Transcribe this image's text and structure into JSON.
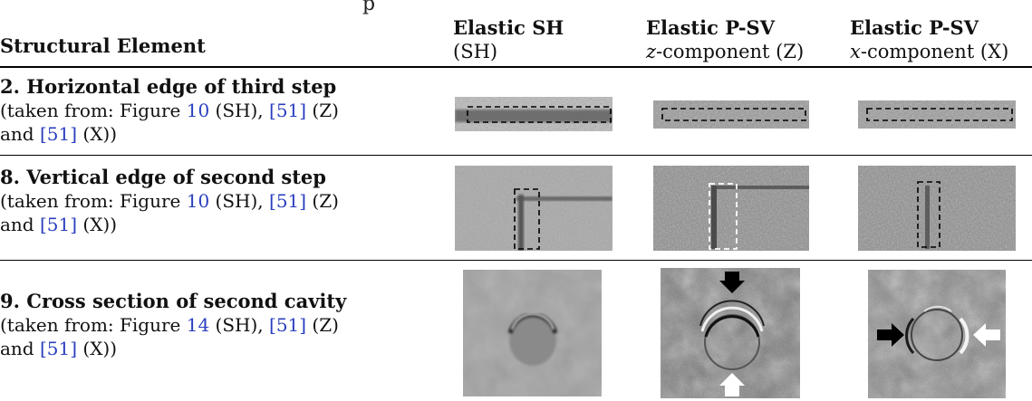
{
  "caption_fragment": "... [cut-off caption line]",
  "columns": [
    {
      "title": "Structural Element",
      "sub": ""
    },
    {
      "title": "Elastic SH",
      "sub": "(SH)"
    },
    {
      "title": "Elastic P-SV",
      "sub_italic": "z",
      "sub_rest": "-component (Z)"
    },
    {
      "title": "Elastic P-SV",
      "sub_italic": "x",
      "sub_rest": "-component (X)"
    }
  ],
  "rows": [
    {
      "title": "2. Horizontal edge of third step",
      "src_prefix": "(taken from: Figure ",
      "fig": "10",
      "sh_tag": " (SH), ",
      "ref1": "[51]",
      "z_tag": " (Z)",
      "src_and": "and ",
      "ref2": "[51]",
      "x_tag": " (X))"
    },
    {
      "title": "8. Vertical edge of second step",
      "src_prefix": "(taken from: Figure ",
      "fig": "10",
      "sh_tag": " (SH), ",
      "ref1": "[51]",
      "z_tag": " (Z)",
      "src_and": "and ",
      "ref2": "[51]",
      "x_tag": " (X))"
    },
    {
      "title": "9. Cross section of second cavity",
      "src_prefix": "(taken from: Figure ",
      "fig": "14",
      "sh_tag": " (SH), ",
      "ref1": "[51]",
      "z_tag": " (Z)",
      "src_and": "and ",
      "ref2": "[51]",
      "x_tag": " (X))"
    }
  ],
  "colors": {
    "reference_link": "#2a3fbf",
    "rule": "#000000"
  }
}
